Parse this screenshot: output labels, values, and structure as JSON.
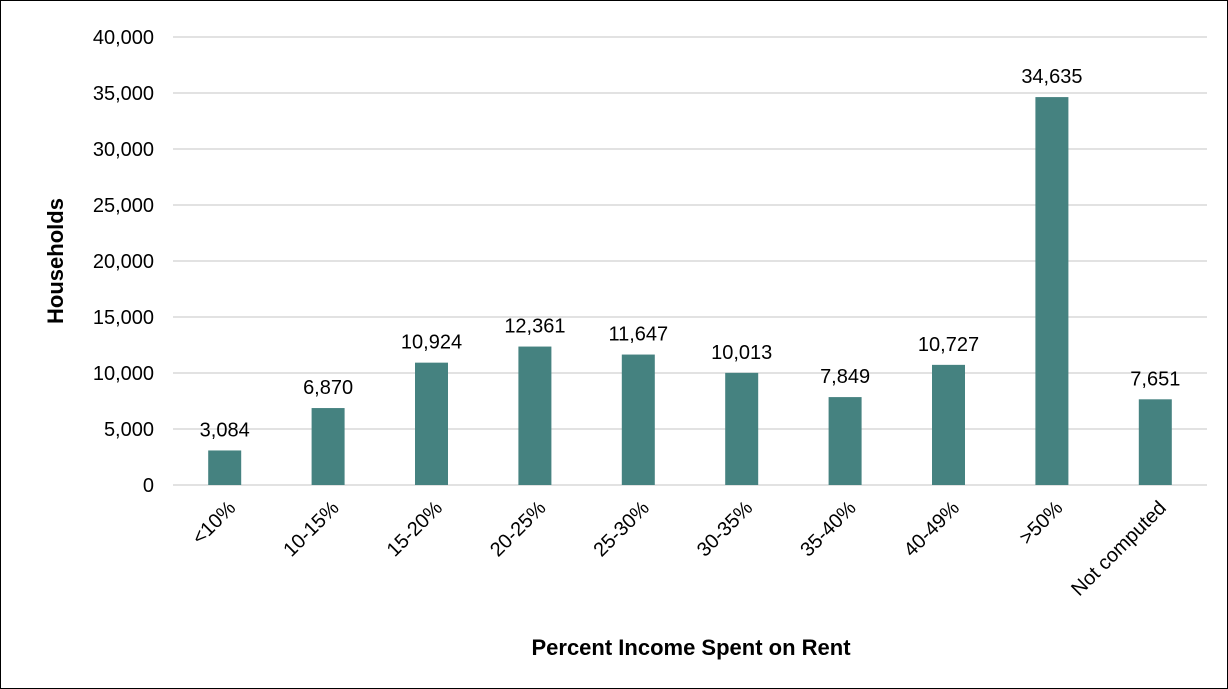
{
  "chart_data": {
    "type": "bar",
    "title": "",
    "xlabel": "Percent Income Spent on Rent",
    "ylabel": "Households",
    "categories": [
      "<10%",
      "10-15%",
      "15-20%",
      "20-25%",
      "25-30%",
      "30-35%",
      "35-40%",
      "40-49%",
      ">50%",
      "Not computed"
    ],
    "values": [
      3084,
      6870,
      10924,
      12361,
      11647,
      10013,
      7849,
      10727,
      34635,
      7651
    ],
    "data_labels": [
      "3,084",
      "6,870",
      "10,924",
      "12,361",
      "11,647",
      "10,013",
      "7,849",
      "10,727",
      "34,635",
      "7,651"
    ],
    "ylim": [
      0,
      40000
    ],
    "yticks": [
      0,
      5000,
      10000,
      15000,
      20000,
      25000,
      30000,
      35000,
      40000
    ],
    "ytick_labels": [
      "0",
      "5,000",
      "10,000",
      "15,000",
      "20,000",
      "25,000",
      "30,000",
      "35,000",
      "40,000"
    ],
    "grid": true,
    "legend": "none",
    "bar_color": "#458280",
    "grid_color": "#d9d9d9"
  }
}
